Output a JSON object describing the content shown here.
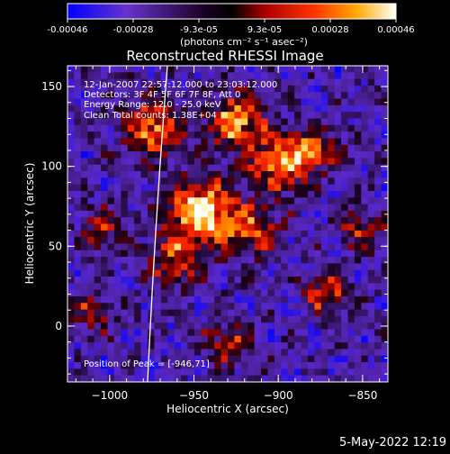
{
  "colorbar": {
    "ticks": [
      "-0.00046",
      "-0.00028",
      "-9.3e-05",
      "9.3e-05",
      "0.00028",
      "0.00046"
    ],
    "units": "(photons cm⁻² s⁻¹ asec⁻²)",
    "colors": [
      "#0000ff",
      "#6633cc",
      "#000000",
      "#aa0000",
      "#ff3300",
      "#ffaa00",
      "#ffffaa",
      "#ffffff"
    ]
  },
  "annotations": {
    "time": "12-Jan-2007 22:57:12.000 to 23:03:12.000",
    "detectors": "Detectors: 3F 4F 5F 6F 7F 8F, Att 0",
    "energy": "Energy Range: 12.0 - 25.0 keV",
    "clean": "Clean     Total counts: 1.38E+04",
    "peak": "Position of Peak = [-946,71]"
  },
  "footer_timestamp": "5-May-2022 12:19",
  "chart_data": {
    "type": "heatmap",
    "title": "Reconstructed RHESSI Image",
    "xlabel": "Heliocentric X (arcsec)",
    "ylabel": "Heliocentric Y (arcsec)",
    "xlim": [
      -1025,
      -835
    ],
    "ylim": [
      -35,
      163
    ],
    "xticks": [
      -1000,
      -950,
      -900,
      -850
    ],
    "yticks": [
      0,
      50,
      100,
      150
    ],
    "xtick_labels": [
      "−1000",
      "−950",
      "−900",
      "−850"
    ],
    "ytick_labels": [
      "0",
      "50",
      "100",
      "150"
    ],
    "peak_position": [
      -946,
      71
    ],
    "colorbar_range": [
      -0.00046,
      0.00046
    ]
  }
}
